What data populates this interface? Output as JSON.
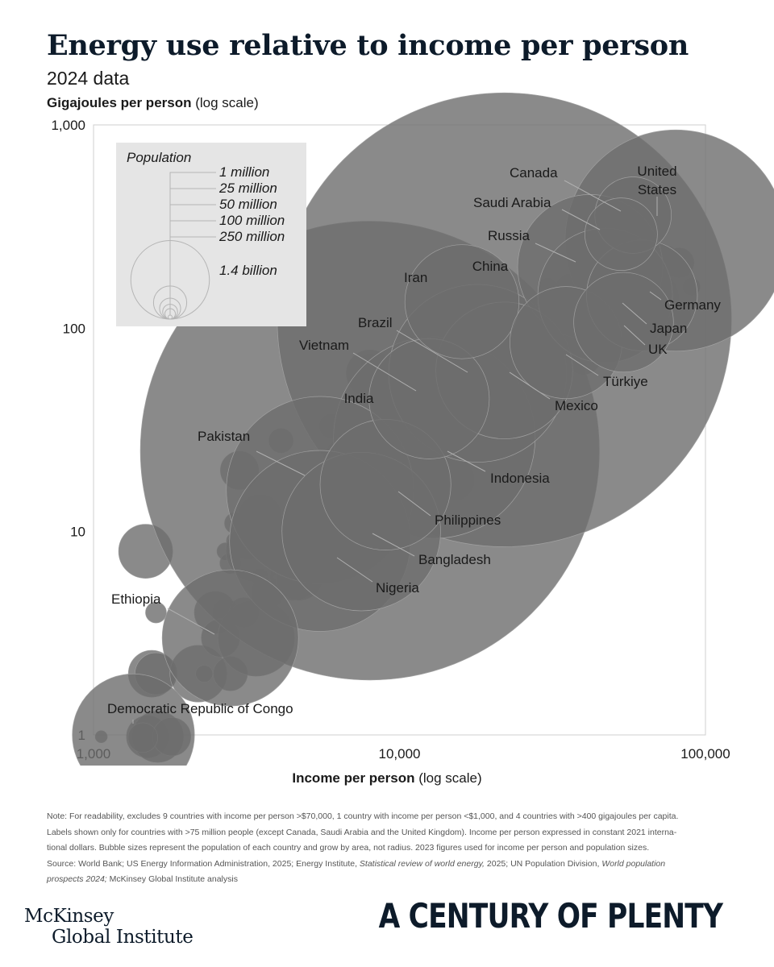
{
  "header": {
    "title": "Energy use relative to income per person",
    "subtitle": "2024 data",
    "ylabel_bold": "Gigajoules per person",
    "ylabel_rest": " (log scale)",
    "xlabel_bold": "Income per person",
    "xlabel_rest": " (log scale)"
  },
  "chart_data": {
    "type": "scatter",
    "x_scale": "log",
    "y_scale": "log",
    "xlim": [
      1000,
      100000
    ],
    "ylim": [
      1,
      1000
    ],
    "x_ticks": [
      {
        "value": 1000,
        "label": "1,000"
      },
      {
        "value": 10000,
        "label": "10,000"
      },
      {
        "value": 100000,
        "label": "100,000"
      }
    ],
    "y_ticks": [
      {
        "value": 1,
        "label": "1"
      },
      {
        "value": 10,
        "label": "10"
      },
      {
        "value": 100,
        "label": "100"
      },
      {
        "value": 1000,
        "label": "1,000"
      }
    ],
    "grid": false,
    "legend": {
      "title": "Population",
      "placement": "top-left",
      "entries": [
        {
          "label": "1 million",
          "population_m": 1
        },
        {
          "label": "25 million",
          "population_m": 25
        },
        {
          "label": "50 million",
          "population_m": 50
        },
        {
          "label": "100 million",
          "population_m": 100
        },
        {
          "label": "250 million",
          "population_m": 250
        },
        {
          "label": "1.4 billion",
          "population_m": 1400
        }
      ]
    },
    "labeled_points": [
      {
        "name": "China",
        "x": 22000,
        "y": 110,
        "population_m": 1410
      },
      {
        "name": "India",
        "x": 8000,
        "y": 25,
        "population_m": 1440
      },
      {
        "name": "United States",
        "x": 80000,
        "y": 270,
        "population_m": 335
      },
      {
        "name": "Indonesia",
        "x": 13000,
        "y": 29,
        "population_m": 278
      },
      {
        "name": "Pakistan",
        "x": 5500,
        "y": 16,
        "population_m": 240
      },
      {
        "name": "Nigeria",
        "x": 5500,
        "y": 9,
        "population_m": 224
      },
      {
        "name": "Brazil",
        "x": 18000,
        "y": 60,
        "population_m": 216
      },
      {
        "name": "Bangladesh",
        "x": 7500,
        "y": 10,
        "population_m": 172
      },
      {
        "name": "Russia",
        "x": 42000,
        "y": 200,
        "population_m": 144
      },
      {
        "name": "Mexico",
        "x": 22000,
        "y": 62,
        "population_m": 128
      },
      {
        "name": "Japan",
        "x": 47000,
        "y": 145,
        "population_m": 124
      },
      {
        "name": "Ethiopia",
        "x": 2800,
        "y": 3,
        "population_m": 127
      },
      {
        "name": "Philippines",
        "x": 9000,
        "y": 17,
        "population_m": 117
      },
      {
        "name": "Democratic Republic of Congo",
        "x": 1350,
        "y": 1,
        "population_m": 102
      },
      {
        "name": "Vietnam",
        "x": 12500,
        "y": 45,
        "population_m": 99
      },
      {
        "name": "Iran",
        "x": 16000,
        "y": 135,
        "population_m": 89
      },
      {
        "name": "Türkiye",
        "x": 35000,
        "y": 85,
        "population_m": 86
      },
      {
        "name": "Germany",
        "x": 62000,
        "y": 145,
        "population_m": 84
      },
      {
        "name": "UK",
        "x": 54000,
        "y": 107,
        "population_m": 68
      },
      {
        "name": "Canada",
        "x": 58000,
        "y": 360,
        "population_m": 40
      },
      {
        "name": "Saudi Arabia",
        "x": 53000,
        "y": 290,
        "population_m": 36
      }
    ],
    "points": [
      [
        1060,
        0.98,
        1
      ],
      [
        1500,
        0.98,
        12
      ],
      [
        1620,
        0.98,
        18
      ],
      [
        1800,
        0.98,
        10
      ],
      [
        1450,
        0.97,
        6
      ],
      [
        1480,
        8,
        20
      ],
      [
        1600,
        4,
        3
      ],
      [
        1550,
        2,
        15
      ],
      [
        1600,
        2,
        12
      ],
      [
        2200,
        2,
        22
      ],
      [
        2300,
        2,
        2
      ],
      [
        2800,
        2,
        8
      ],
      [
        2500,
        4,
        12
      ],
      [
        2700,
        4,
        5
      ],
      [
        3100,
        4,
        6
      ],
      [
        2600,
        3,
        10
      ],
      [
        3400,
        3,
        40
      ],
      [
        2700,
        8,
        2
      ],
      [
        2800,
        7,
        3
      ],
      [
        2900,
        11,
        3
      ],
      [
        2900,
        9,
        2
      ],
      [
        3000,
        20,
        10
      ],
      [
        3200,
        9,
        9
      ],
      [
        3400,
        8,
        25
      ],
      [
        3500,
        6,
        2
      ],
      [
        3500,
        12,
        12
      ],
      [
        3600,
        9,
        8
      ],
      [
        3700,
        5,
        7
      ],
      [
        4000,
        8,
        4
      ],
      [
        4100,
        28,
        4
      ],
      [
        4200,
        9,
        10
      ],
      [
        4300,
        11,
        2
      ],
      [
        4500,
        6,
        15
      ],
      [
        4700,
        6,
        15
      ],
      [
        5000,
        17,
        2
      ],
      [
        5300,
        11,
        22
      ],
      [
        5700,
        12,
        3
      ],
      [
        6000,
        33,
        4
      ],
      [
        6200,
        25,
        2
      ],
      [
        6500,
        13,
        17
      ],
      [
        6300,
        19,
        2
      ],
      [
        6500,
        9,
        25
      ],
      [
        7000,
        15,
        2
      ],
      [
        7100,
        27,
        2
      ],
      [
        7200,
        24,
        3
      ],
      [
        7500,
        23,
        2
      ],
      [
        8000,
        68,
        2
      ],
      [
        8000,
        60,
        15
      ],
      [
        8500,
        26,
        20
      ],
      [
        9200,
        33,
        6
      ],
      [
        9500,
        44,
        2
      ],
      [
        9200,
        28,
        2
      ],
      [
        10000,
        23,
        2
      ],
      [
        11000,
        37,
        2
      ],
      [
        11500,
        30,
        2
      ],
      [
        11800,
        22,
        2
      ],
      [
        12000,
        21,
        10
      ],
      [
        12500,
        36,
        3
      ],
      [
        12500,
        31,
        12
      ],
      [
        12000,
        58,
        3
      ],
      [
        12200,
        53,
        2
      ],
      [
        12800,
        49,
        20
      ],
      [
        13500,
        71,
        2
      ],
      [
        14000,
        78,
        3
      ],
      [
        14500,
        86,
        30
      ],
      [
        14500,
        95,
        2
      ],
      [
        14500,
        38,
        2
      ],
      [
        15000,
        18,
        12
      ],
      [
        15500,
        59,
        18
      ],
      [
        16000,
        35,
        18
      ],
      [
        16500,
        35,
        15
      ],
      [
        16800,
        44,
        2
      ],
      [
        17000,
        37,
        10
      ],
      [
        17500,
        41,
        2
      ],
      [
        18000,
        40,
        20
      ],
      [
        18000,
        46,
        6
      ],
      [
        18500,
        68,
        2
      ],
      [
        19000,
        43,
        2
      ],
      [
        20000,
        58,
        10
      ],
      [
        19500,
        75,
        15
      ],
      [
        19000,
        100,
        5
      ],
      [
        21000,
        28,
        2
      ],
      [
        22000,
        80,
        10
      ],
      [
        23000,
        70,
        25
      ],
      [
        24000,
        100,
        3
      ],
      [
        25000,
        45,
        2
      ],
      [
        25500,
        38,
        2
      ],
      [
        26000,
        36,
        8
      ],
      [
        26500,
        50,
        2
      ],
      [
        27000,
        43,
        3
      ],
      [
        28000,
        76,
        20
      ],
      [
        29000,
        113,
        3
      ],
      [
        30000,
        120,
        3
      ],
      [
        30500,
        160,
        2
      ],
      [
        31000,
        125,
        10
      ],
      [
        32000,
        90,
        8
      ],
      [
        33000,
        112,
        2
      ],
      [
        34000,
        120,
        8
      ],
      [
        35000,
        95,
        2
      ],
      [
        36000,
        104,
        4
      ],
      [
        37000,
        150,
        10
      ],
      [
        38000,
        88,
        3
      ],
      [
        39000,
        85,
        3
      ],
      [
        40000,
        72,
        8
      ],
      [
        40000,
        95,
        4
      ],
      [
        41000,
        117,
        10
      ],
      [
        42000,
        102,
        2
      ],
      [
        42500,
        320,
        2
      ],
      [
        43000,
        160,
        3
      ],
      [
        43500,
        115,
        12
      ],
      [
        44000,
        118,
        2
      ],
      [
        44500,
        80,
        2
      ],
      [
        45000,
        86,
        4
      ],
      [
        45500,
        98,
        3
      ],
      [
        46000,
        93,
        4
      ],
      [
        48000,
        114,
        10
      ],
      [
        49500,
        130,
        3
      ],
      [
        50000,
        155,
        2
      ],
      [
        50500,
        118,
        4
      ],
      [
        52000,
        150,
        6
      ],
      [
        53000,
        95,
        2
      ],
      [
        54000,
        245,
        18
      ],
      [
        55000,
        160,
        3
      ],
      [
        56000,
        115,
        4
      ],
      [
        57000,
        88,
        2
      ],
      [
        62000,
        240,
        2
      ],
      [
        63000,
        275,
        2
      ],
      [
        66000,
        140,
        22
      ],
      [
        68000,
        215,
        10
      ],
      [
        72000,
        160,
        3
      ],
      [
        73000,
        210,
        5
      ],
      [
        75000,
        225,
        3
      ],
      [
        78000,
        205,
        3
      ],
      [
        82000,
        210,
        6
      ],
      [
        84000,
        115,
        2
      ],
      [
        90000,
        160,
        2
      ]
    ]
  },
  "footer": {
    "note_line1": "Note: For readability, excludes 9 countries with income per person >$70,000, 1 country with income per person <$1,000, and 4 countries with >400 gigajoules per capita.",
    "note_line2": "Labels shown only for countries with >75 million people (except Canada, Saudi Arabia and the United Kingdom). Income per person expressed in constant 2021 interna-",
    "note_line3": "tional dollars. Bubble sizes represent the population of each country and grow by area, not radius. 2023 figures used for income per person and population sizes.",
    "source_a": "Source: World Bank; US Energy Information Administration, 2025; Energy Institute, ",
    "source_b": "Statistical review of world energy,",
    "source_c": " 2025; UN Population Division, ",
    "source_d": "World population",
    "source_e": "prospects 2024;",
    "source_f": " McKinsey Global Institute analysis",
    "brand_line1": "McKinsey",
    "brand_line2": "Global Institute",
    "series_title": "A CENTURY OF PLENTY"
  }
}
